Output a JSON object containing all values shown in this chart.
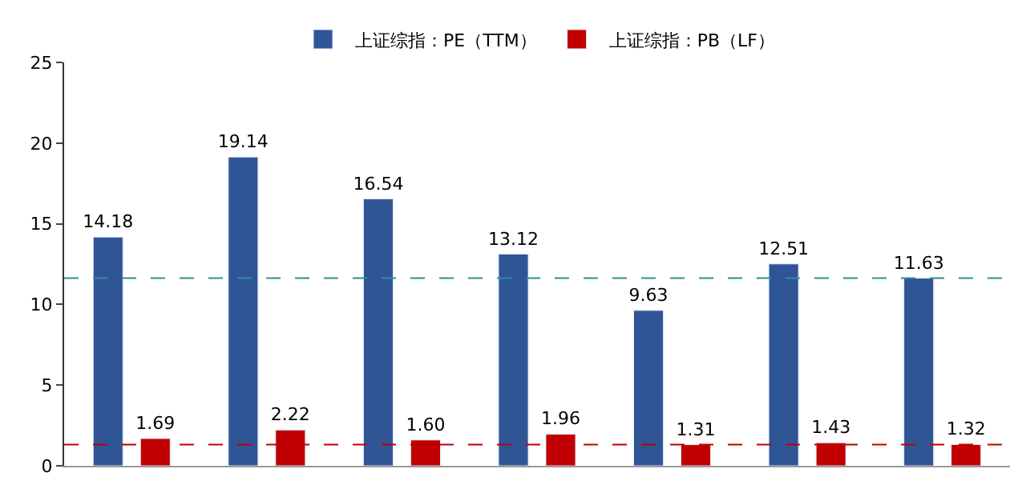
{
  "chart_data": {
    "type": "bar",
    "categories": [
      null,
      null,
      null,
      null,
      null,
      null,
      null
    ],
    "series": [
      {
        "name": "上证综指：PE（TTM）",
        "color": "#2f5597",
        "values": [
          14.18,
          19.14,
          16.54,
          13.12,
          9.63,
          12.51,
          11.63
        ],
        "value_labels": [
          "14.18",
          "19.14",
          "16.54",
          "13.12",
          "9.63",
          "12.51",
          "11.63"
        ]
      },
      {
        "name": "上证综指：PB（LF）",
        "color": "#c00000",
        "values": [
          1.69,
          2.22,
          1.6,
          1.96,
          1.31,
          1.43,
          1.32
        ],
        "value_labels": [
          "1.69",
          "2.22",
          "1.60",
          "1.96",
          "1.31",
          "1.43",
          "1.32"
        ]
      }
    ],
    "ylim": [
      0,
      25
    ],
    "yticks": [
      0,
      5,
      10,
      15,
      20,
      25
    ],
    "ref_lines": [
      {
        "axis": "y",
        "value": 11.63,
        "color": "#2f8f8f",
        "line_style": "dashed"
      },
      {
        "axis": "y",
        "value": 1.32,
        "color": "#c00000",
        "line_style": "dashed"
      }
    ],
    "legend": "top"
  }
}
